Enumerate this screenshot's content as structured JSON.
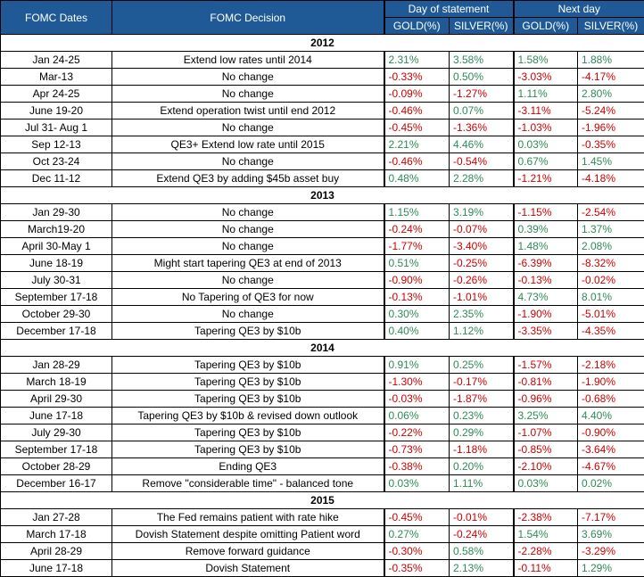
{
  "header": {
    "dates": "FOMC Dates",
    "decision": "FOMC Decision",
    "group1": "Day of statement",
    "group2": "Next day",
    "columns": [
      "GOLD(%)",
      "SILVER(%)",
      "GOLD(%)",
      "SILVER(%)"
    ]
  },
  "sections": [
    {
      "year": "2012",
      "rows": [
        {
          "date": "Jan 24-25",
          "decision": "Extend low rates until 2014",
          "values": [
            "2.31%",
            "3.58%",
            "1.58%",
            "1.88%"
          ]
        },
        {
          "date": "Mar-13",
          "decision": "No change",
          "values": [
            "-0.33%",
            "0.50%",
            "-3.03%",
            "-4.17%"
          ]
        },
        {
          "date": "Apr 24-25",
          "decision": "No change",
          "values": [
            "-0.09%",
            "-1.27%",
            "1.11%",
            "2.80%"
          ]
        },
        {
          "date": "June 19-20",
          "decision": "Extend operation twist until end 2012",
          "values": [
            "-0.46%",
            "0.07%",
            "-3.11%",
            "-5.24%"
          ]
        },
        {
          "date": "Jul 31- Aug 1",
          "decision": "No change",
          "values": [
            "-0.45%",
            "-1.36%",
            "-1.03%",
            "-1.96%"
          ]
        },
        {
          "date": "Sep 12-13",
          "decision": "QE3+ Extend low rate until 2015",
          "values": [
            "2.21%",
            "4.46%",
            "0.03%",
            "-0.35%"
          ]
        },
        {
          "date": "Oct  23-24",
          "decision": "No change",
          "values": [
            "-0.46%",
            "-0.54%",
            "0.67%",
            "1.45%"
          ]
        },
        {
          "date": "Dec 11-12",
          "decision": "Extend QE3 by adding $45b asset buy",
          "values": [
            "0.48%",
            "2.28%",
            "-1.21%",
            "-4.18%"
          ]
        }
      ]
    },
    {
      "year": "2013",
      "rows": [
        {
          "date": "Jan 29-30",
          "decision": "No change",
          "values": [
            "1.15%",
            "3.19%",
            "-1.15%",
            "-2.54%"
          ]
        },
        {
          "date": "March19-20",
          "decision": "No change",
          "values": [
            "-0.24%",
            "-0.07%",
            "0.39%",
            "1.37%"
          ]
        },
        {
          "date": "April 30-May 1",
          "decision": "No change",
          "values": [
            "-1.77%",
            "-3.40%",
            "1.48%",
            "2.08%"
          ]
        },
        {
          "date": "June 18-19",
          "decision": "Might start tapering QE3 at end of 2013",
          "values": [
            "0.51%",
            "-0.25%",
            "-6.39%",
            "-8.32%"
          ]
        },
        {
          "date": "July 30-31",
          "decision": "No change",
          "values": [
            "-0.90%",
            "-0.26%",
            "-0.13%",
            "-0.02%"
          ]
        },
        {
          "date": "September  17-18",
          "decision": "No Tapering of QE3 for now",
          "values": [
            "-0.13%",
            "-1.01%",
            "4.73%",
            "8.01%"
          ]
        },
        {
          "date": "October 29-30",
          "decision": "No change",
          "values": [
            "0.30%",
            "2.35%",
            "-1.90%",
            "-5.01%"
          ]
        },
        {
          "date": "December 17-18",
          "decision": "Tapering QE3 by $10b",
          "values": [
            "0.40%",
            "1.12%",
            "-3.35%",
            "-4.35%"
          ]
        }
      ]
    },
    {
      "year": "2014",
      "rows": [
        {
          "date": "Jan 28-29",
          "decision": "Tapering QE3 by $10b",
          "values": [
            "0.91%",
            "0.25%",
            "-1.57%",
            "-2.18%"
          ]
        },
        {
          "date": "March 18-19",
          "decision": "Tapering QE3 by $10b",
          "values": [
            "-1.30%",
            "-0.17%",
            "-0.81%",
            "-1.90%"
          ]
        },
        {
          "date": "April 29-30",
          "decision": "Tapering QE3 by $10b",
          "values": [
            "-0.03%",
            "-1.87%",
            "-0.96%",
            "-0.68%"
          ]
        },
        {
          "date": "June 17-18",
          "decision": "Tapering QE3 by $10b & revised down outlook",
          "values": [
            "0.06%",
            "0.23%",
            "3.25%",
            "4.40%"
          ]
        },
        {
          "date": "July 29-30",
          "decision": "Tapering QE3 by $10b",
          "values": [
            "-0.22%",
            "0.29%",
            "-1.07%",
            "-0.90%"
          ]
        },
        {
          "date": "September  17-18",
          "decision": "Tapering QE3 by $10b",
          "values": [
            "-0.73%",
            "-1.18%",
            "-0.85%",
            "-3.64%"
          ]
        },
        {
          "date": "October 28-29",
          "decision": "Ending QE3",
          "values": [
            "-0.38%",
            "0.20%",
            "-2.10%",
            "-4.67%"
          ]
        },
        {
          "date": "December 16-17",
          "decision": "Remove \"considerable time\" - balanced tone",
          "values": [
            "0.03%",
            "1.11%",
            "0.03%",
            "0.02%"
          ]
        }
      ]
    },
    {
      "year": "2015",
      "rows": [
        {
          "date": "Jan 27-28",
          "decision": "The Fed remains patient with rate hike",
          "values": [
            "-0.45%",
            "-0.01%",
            "-2.38%",
            "-7.17%"
          ]
        },
        {
          "date": "March 17-18",
          "decision": "Dovish Statement  despite omitting Patient word",
          "values": [
            "0.27%",
            "-0.24%",
            "1.54%",
            "3.69%"
          ]
        },
        {
          "date": "April 28-29",
          "decision": "Remove forward guidance",
          "values": [
            "-0.30%",
            "0.58%",
            "-2.28%",
            "-3.29%"
          ]
        },
        {
          "date": "June 17-18",
          "decision": "Dovish Statement",
          "values": [
            "-0.35%",
            "2.13%",
            "-0.11%",
            "1.29%"
          ]
        }
      ]
    }
  ]
}
